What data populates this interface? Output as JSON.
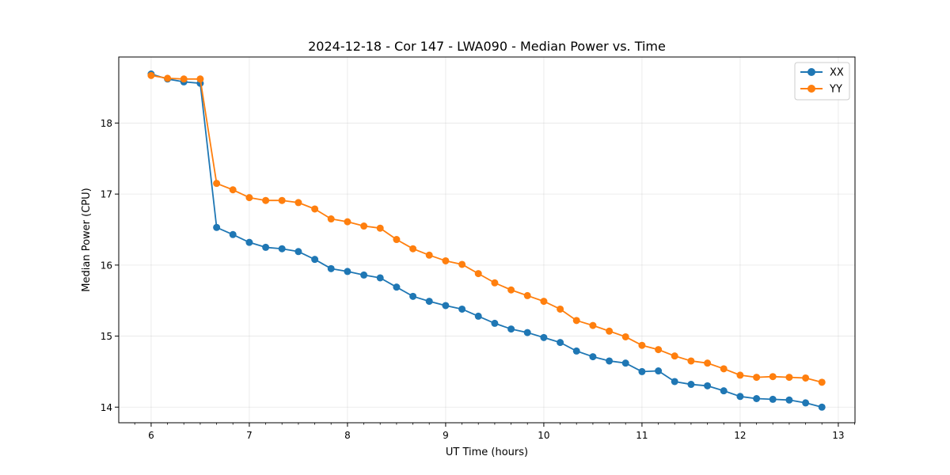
{
  "chart_data": {
    "type": "line",
    "title": "2024-12-18 - Cor 147 - LWA090 - Median Power vs. Time",
    "xlabel": "UT Time (hours)",
    "ylabel": "Median Power (CPU)",
    "xlim": [
      5.67,
      13.17
    ],
    "ylim": [
      13.78,
      18.93
    ],
    "xticks": [
      6,
      7,
      8,
      9,
      10,
      11,
      12,
      13
    ],
    "xticks_minor": [
      5.667,
      5.833,
      6.167,
      6.333,
      6.5,
      6.667,
      6.833,
      7.167,
      7.333,
      7.5,
      7.667,
      7.833,
      8.167,
      8.333,
      8.5,
      8.667,
      8.833,
      9.167,
      9.333,
      9.5,
      9.667,
      9.833,
      10.167,
      10.333,
      10.5,
      10.667,
      10.833,
      11.167,
      11.333,
      11.5,
      11.667,
      11.833,
      12.167,
      12.333,
      12.5,
      12.667,
      12.833,
      13.167
    ],
    "yticks": [
      14,
      15,
      16,
      17,
      18
    ],
    "grid": true,
    "legend_position": "top-right",
    "x": [
      6.0,
      6.167,
      6.333,
      6.5,
      6.667,
      6.833,
      7.0,
      7.167,
      7.333,
      7.5,
      7.667,
      7.833,
      8.0,
      8.167,
      8.333,
      8.5,
      8.667,
      8.833,
      9.0,
      9.167,
      9.333,
      9.5,
      9.667,
      9.833,
      10.0,
      10.167,
      10.333,
      10.5,
      10.667,
      10.833,
      11.0,
      11.167,
      11.333,
      11.5,
      11.667,
      11.833,
      12.0,
      12.167,
      12.333,
      12.5,
      12.667,
      12.833
    ],
    "series": [
      {
        "name": "XX",
        "color": "#1f77b4",
        "values": [
          18.69,
          18.62,
          18.58,
          18.56,
          16.53,
          16.43,
          16.32,
          16.25,
          16.23,
          16.19,
          16.08,
          15.95,
          15.91,
          15.86,
          15.82,
          15.69,
          15.56,
          15.49,
          15.43,
          15.38,
          15.28,
          15.18,
          15.1,
          15.05,
          14.98,
          14.91,
          14.79,
          14.71,
          14.65,
          14.62,
          14.5,
          14.51,
          14.36,
          14.32,
          14.3,
          14.23,
          14.15,
          14.12,
          14.11,
          14.1,
          14.06,
          14.0
        ]
      },
      {
        "name": "YY",
        "color": "#ff7f0e",
        "values": [
          18.67,
          18.63,
          18.62,
          18.62,
          17.15,
          17.06,
          16.95,
          16.91,
          16.91,
          16.88,
          16.79,
          16.65,
          16.61,
          16.55,
          16.52,
          16.36,
          16.23,
          16.14,
          16.06,
          16.01,
          15.88,
          15.75,
          15.65,
          15.57,
          15.49,
          15.38,
          15.22,
          15.15,
          15.07,
          14.99,
          14.87,
          14.81,
          14.72,
          14.65,
          14.62,
          14.54,
          14.45,
          14.42,
          14.43,
          14.42,
          14.41,
          14.35
        ]
      }
    ]
  }
}
